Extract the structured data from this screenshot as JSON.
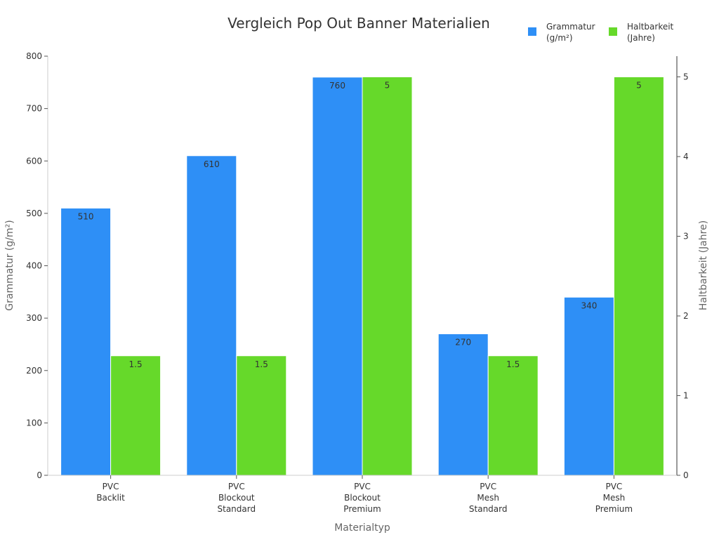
{
  "chart_data": {
    "type": "bar",
    "title": "Vergleich Pop Out Banner Materialien",
    "xlabel": "Materialtyp",
    "ylabel_left": "Grammatur (g/m²)",
    "ylabel_right": "Haltbarkeit (Jahre)",
    "categories": [
      [
        "PVC",
        "Backlit"
      ],
      [
        "PVC",
        "Blockout",
        "Standard"
      ],
      [
        "PVC",
        "Blockout",
        "Premium"
      ],
      [
        "PVC",
        "Mesh",
        "Standard"
      ],
      [
        "PVC",
        "Mesh",
        "Premium"
      ]
    ],
    "series": [
      {
        "name": "Grammatur (g/m²)",
        "legend_lines": [
          "Grammatur",
          "(g/m²)"
        ],
        "axis": "left",
        "color": "#2e8ff6",
        "values": [
          510,
          610,
          760,
          270,
          340
        ],
        "labels": [
          "510",
          "610",
          "760",
          "270",
          "340"
        ]
      },
      {
        "name": "Haltbarkeit (Jahre)",
        "legend_lines": [
          "Haltbarkeit",
          "(Jahre)"
        ],
        "axis": "right",
        "color": "#66d92a",
        "values": [
          1.5,
          1.5,
          5,
          1.5,
          5
        ],
        "labels": [
          "1.5",
          "1.5",
          "5",
          "1.5",
          "5"
        ]
      }
    ],
    "ylim_left": [
      0,
      800
    ],
    "yticks_left": [
      0,
      100,
      200,
      300,
      400,
      500,
      600,
      700,
      800
    ],
    "ylim_right": [
      0,
      5.26
    ],
    "yticks_right": [
      0,
      1,
      2,
      3,
      4,
      5
    ],
    "grid": false,
    "legend_position": "top-right"
  }
}
